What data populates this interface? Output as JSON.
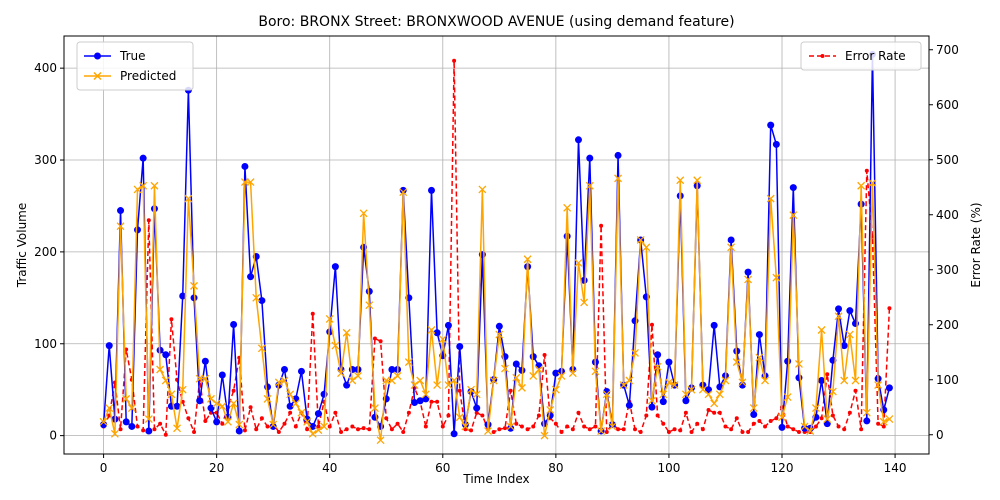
{
  "chart_data": {
    "type": "line",
    "title": "Boro: BRONX Street: BRONXWOOD AVENUE (using demand feature)",
    "xlabel": "Time Index",
    "ylabel": "Traffic Volume",
    "ylabel_right": "Error Rate (%)",
    "xlim": [
      -7,
      146
    ],
    "ylim": [
      -20,
      435
    ],
    "ylim_right": [
      -35,
      725
    ],
    "x_ticks": [
      0,
      20,
      40,
      60,
      80,
      100,
      120,
      140
    ],
    "y_ticks": [
      0,
      100,
      200,
      300,
      400
    ],
    "y_ticks_right": [
      0,
      100,
      200,
      300,
      400,
      500,
      600,
      700
    ],
    "grid": true,
    "legend_left": "upper-left",
    "legend_right": "upper-right",
    "colors": {
      "true": "#0000ff",
      "predicted": "#ffa500",
      "error": "#ff0000"
    },
    "series": [
      {
        "name": "True",
        "axis": "left",
        "marker": "circle",
        "values": [
          12,
          98,
          18,
          245,
          15,
          10,
          224,
          302,
          5,
          247,
          93,
          88,
          32,
          32,
          152,
          376,
          150,
          38,
          81,
          30,
          15,
          66,
          20,
          121,
          5,
          293,
          173,
          195,
          147,
          53,
          10,
          55,
          72,
          32,
          40,
          70,
          18,
          10,
          24,
          45,
          113,
          184,
          72,
          55,
          72,
          72,
          205,
          157,
          20,
          10,
          40,
          72,
          72,
          267,
          150,
          36,
          38,
          40,
          267,
          112,
          87,
          120,
          2,
          97,
          12,
          48,
          30,
          197,
          12,
          61,
          119,
          86,
          8,
          78,
          71,
          184,
          86,
          76,
          13,
          22,
          68,
          70,
          217,
          72,
          322,
          169,
          302,
          80,
          5,
          48,
          12,
          305,
          55,
          33,
          125,
          213,
          151,
          31,
          88,
          37,
          80,
          55,
          261,
          38,
          52,
          272,
          55,
          50,
          120,
          53,
          65,
          213,
          92,
          55,
          178,
          23,
          110,
          65,
          338,
          317,
          9,
          81,
          270,
          63,
          8,
          8,
          20,
          60,
          13,
          82,
          138,
          98,
          136,
          122,
          252,
          16,
          415,
          62,
          28,
          52
        ]
      },
      {
        "name": "Predicted",
        "axis": "left",
        "marker": "x",
        "values": [
          15,
          30,
          2,
          228,
          40,
          30,
          268,
          272,
          18,
          272,
          72,
          60,
          45,
          8,
          50,
          258,
          163,
          62,
          62,
          40,
          35,
          32,
          15,
          35,
          12,
          276,
          276,
          150,
          95,
          40,
          12,
          58,
          60,
          45,
          35,
          25,
          15,
          2,
          6,
          10,
          127,
          98,
          68,
          112,
          60,
          65,
          242,
          142,
          30,
          -5,
          60,
          60,
          65,
          265,
          80,
          55,
          60,
          45,
          115,
          55,
          105,
          55,
          60,
          20,
          10,
          50,
          45,
          268,
          5,
          60,
          110,
          73,
          10,
          63,
          52,
          192,
          65,
          72,
          0,
          28,
          50,
          65,
          248,
          68,
          188,
          145,
          272,
          70,
          5,
          45,
          10,
          280,
          55,
          60,
          90,
          213,
          205,
          38,
          75,
          45,
          58,
          55,
          278,
          45,
          50,
          278,
          50,
          45,
          35,
          45,
          60,
          205,
          80,
          58,
          170,
          30,
          85,
          60,
          258,
          172,
          20,
          42,
          240,
          78,
          10,
          5,
          30,
          115,
          18,
          48,
          130,
          60,
          110,
          60,
          272,
          25,
          275,
          55,
          15,
          18
        ]
      },
      {
        "name": "Error Rate",
        "axis": "right",
        "marker": "dot",
        "values": [
          15,
          35,
          95,
          10,
          155,
          100,
          15,
          8,
          390,
          10,
          20,
          0,
          210,
          100,
          60,
          30,
          5,
          100,
          25,
          40,
          40,
          20,
          50,
          80,
          140,
          8,
          50,
          10,
          30,
          15,
          20,
          5,
          20,
          40,
          15,
          40,
          10,
          220,
          15,
          60,
          15,
          40,
          5,
          10,
          15,
          10,
          12,
          10,
          175,
          170,
          30,
          10,
          20,
          5,
          40,
          85,
          60,
          15,
          60,
          60,
          15,
          35,
          680,
          80,
          10,
          8,
          40,
          35,
          10,
          5,
          10,
          12,
          80,
          20,
          15,
          10,
          15,
          35,
          145,
          30,
          20,
          5,
          15,
          10,
          40,
          15,
          10,
          15,
          380,
          5,
          20,
          10,
          10,
          60,
          10,
          5,
          35,
          200,
          35,
          20,
          5,
          10,
          8,
          40,
          5,
          20,
          10,
          45,
          40,
          40,
          15,
          10,
          30,
          5,
          5,
          20,
          25,
          15,
          25,
          30,
          50,
          15,
          10,
          5,
          5,
          5,
          15,
          30,
          110,
          35,
          15,
          10,
          40,
          80,
          10,
          480,
          360,
          20,
          15,
          230
        ]
      }
    ]
  }
}
